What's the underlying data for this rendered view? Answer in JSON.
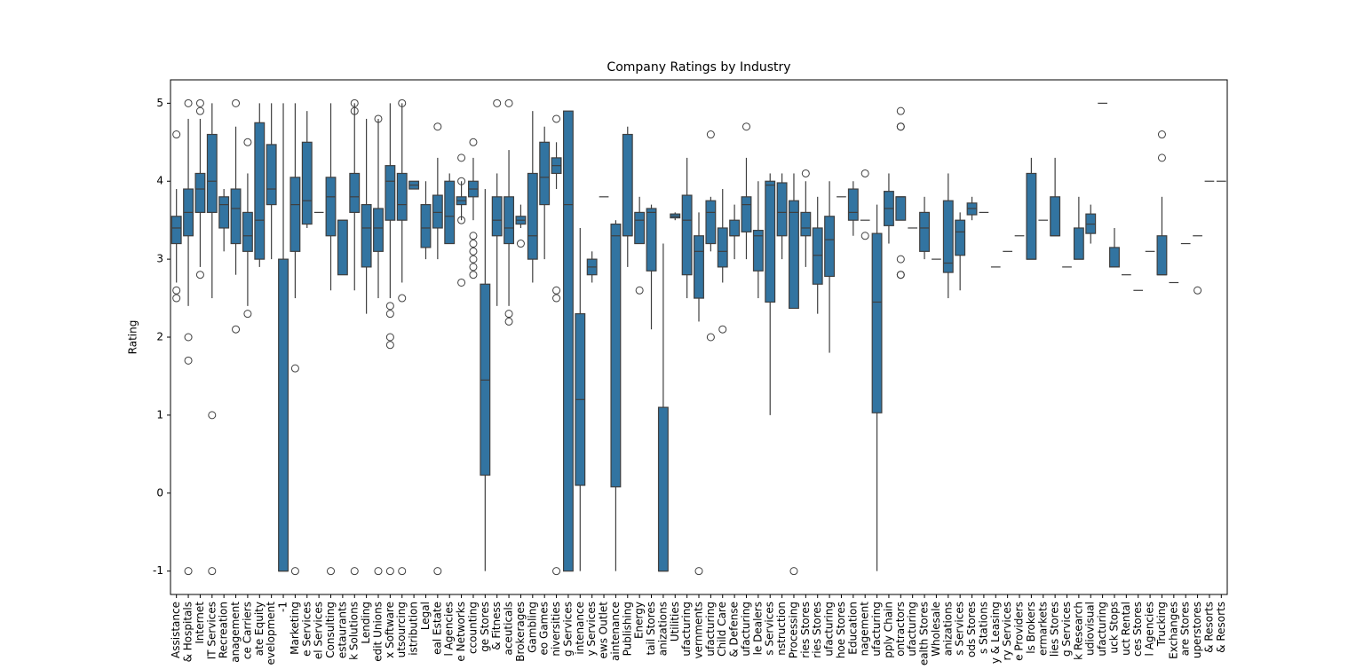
{
  "chart_data": {
    "type": "box",
    "title": "Company Ratings by Industry",
    "y_label": "Rating",
    "color": "#3274a1",
    "line_color": "#3f3f3f",
    "ylim": [
      -1.3,
      5.3
    ],
    "yticks": [
      -1,
      0,
      1,
      2,
      3,
      4,
      5
    ],
    "categories": [
      "Assistance",
      "& Hospitals",
      "Internet",
      "IT Services",
      "Recreation",
      "anagement",
      "ce Carriers",
      "ate Equity",
      "evelopment",
      "-1",
      "Marketing",
      "e Services",
      "el Services",
      "Consulting",
      "estaurants",
      "k Solutions",
      "Lending",
      "edit Unions",
      "x Software",
      "utsourcing",
      "istribution",
      "Legal",
      "eal Estate",
      "l Agencies",
      "e Networks",
      "ccounting",
      "ge Stores",
      "& Fitness",
      "aceuticals",
      "Brokerages",
      "Gambling",
      "eo Games",
      "niversities",
      "g Services",
      "intenance",
      "y Services",
      "ews Outlet",
      "aintenance",
      "Publishing",
      "Energy",
      "tail Stores",
      "anizations",
      "Utilities",
      "ufacturing",
      "vernments",
      "ufacturing",
      "Child Care",
      "& Defense",
      "ufacturing",
      "le Dealers",
      "s Services",
      "nstruction",
      "Processing",
      "ries Stores",
      "ries Stores",
      "ufacturing",
      "hoe Stores",
      "Education",
      "nagement",
      "ufacturing",
      "pply Chain",
      "ontractors",
      "ufacturing",
      "ealth Stores",
      "Wholesale",
      "anizations",
      "s Services",
      "ods Stores",
      "s Stations",
      "y & Leasing",
      "ry Services",
      "e Providers",
      "ls Brokers",
      "ermarkets",
      "lies Stores",
      "g Services",
      "k Research",
      "udiovisual",
      "ufacturing",
      "uck Stops",
      "uct Rental",
      "ces Stores",
      "l Agencies",
      "Trucking",
      "Exchanges",
      "are Stores",
      "uperstores",
      "& Resorts",
      "& Resorts"
    ],
    "boxes": [
      {
        "min": 2.7,
        "q1": 3.2,
        "median": 3.4,
        "q3": 3.55,
        "max": 3.9,
        "outliers": [
          4.6,
          2.6,
          2.5
        ]
      },
      {
        "min": 2.4,
        "q1": 3.3,
        "median": 3.6,
        "q3": 3.9,
        "max": 4.8,
        "outliers": [
          5.0,
          2.0,
          1.7,
          -1
        ]
      },
      {
        "min": 2.9,
        "q1": 3.6,
        "median": 3.9,
        "q3": 4.1,
        "max": 4.8,
        "outliers": [
          5.0,
          4.9,
          2.8
        ]
      },
      {
        "min": 2.5,
        "q1": 3.6,
        "median": 4.0,
        "q3": 4.6,
        "max": 5.0,
        "outliers": [
          1.0,
          -1
        ]
      },
      {
        "min": 3.1,
        "q1": 3.4,
        "median": 3.7,
        "q3": 3.8,
        "max": 3.9,
        "outliers": []
      },
      {
        "min": 2.8,
        "q1": 3.2,
        "median": 3.65,
        "q3": 3.9,
        "max": 4.7,
        "outliers": [
          5.0,
          2.1
        ]
      },
      {
        "min": 2.4,
        "q1": 3.1,
        "median": 3.3,
        "q3": 3.6,
        "max": 4.1,
        "outliers": [
          4.5,
          2.3
        ]
      },
      {
        "min": 2.9,
        "q1": 3.0,
        "median": 3.5,
        "q3": 4.75,
        "max": 5.0,
        "outliers": []
      },
      {
        "min": 3.0,
        "q1": 3.7,
        "median": 3.9,
        "q3": 4.47,
        "max": 5.0,
        "outliers": []
      },
      {
        "min": -1,
        "q1": -1,
        "median": -1,
        "q3": 3.0,
        "max": 5.0,
        "outliers": []
      },
      {
        "min": 2.5,
        "q1": 3.1,
        "median": 3.7,
        "q3": 4.05,
        "max": 5.0,
        "outliers": [
          1.6,
          -1
        ]
      },
      {
        "min": 3.4,
        "q1": 3.45,
        "median": 3.75,
        "q3": 4.5,
        "max": 4.9,
        "outliers": []
      },
      {
        "min": 3.6,
        "q1": 3.6,
        "median": 3.6,
        "q3": 3.6,
        "max": 3.6,
        "outliers": []
      },
      {
        "min": 2.6,
        "q1": 3.3,
        "median": 3.8,
        "q3": 4.05,
        "max": 5.0,
        "outliers": [
          -1
        ]
      },
      {
        "min": 2.8,
        "q1": 2.8,
        "median": 3.5,
        "q3": 3.5,
        "max": 3.5,
        "outliers": []
      },
      {
        "min": 2.6,
        "q1": 3.6,
        "median": 3.8,
        "q3": 4.1,
        "max": 5.0,
        "outliers": [
          5.0,
          4.9,
          -1
        ]
      },
      {
        "min": 2.3,
        "q1": 2.9,
        "median": 3.4,
        "q3": 3.7,
        "max": 4.8,
        "outliers": []
      },
      {
        "min": 2.5,
        "q1": 3.1,
        "median": 3.4,
        "q3": 3.65,
        "max": 4.8,
        "outliers": [
          4.8,
          -1
        ]
      },
      {
        "min": 2.5,
        "q1": 3.5,
        "median": 4.0,
        "q3": 4.2,
        "max": 5.0,
        "outliers": [
          2.4,
          2.3,
          2.0,
          1.9,
          -1
        ]
      },
      {
        "min": 2.7,
        "q1": 3.5,
        "median": 3.7,
        "q3": 4.1,
        "max": 5.0,
        "outliers": [
          5.0,
          2.5,
          -1
        ]
      },
      {
        "min": 3.9,
        "q1": 3.9,
        "median": 3.95,
        "q3": 4.0,
        "max": 4.0,
        "outliers": []
      },
      {
        "min": 3.0,
        "q1": 3.15,
        "median": 3.4,
        "q3": 3.7,
        "max": 4.0,
        "outliers": []
      },
      {
        "min": 3.0,
        "q1": 3.4,
        "median": 3.6,
        "q3": 3.82,
        "max": 4.3,
        "outliers": [
          4.7,
          -1
        ]
      },
      {
        "min": 3.2,
        "q1": 3.2,
        "median": 3.55,
        "q3": 4.0,
        "max": 4.1,
        "outliers": []
      },
      {
        "min": 3.5,
        "q1": 3.7,
        "median": 3.75,
        "q3": 3.8,
        "max": 4.0,
        "outliers": [
          4.3,
          4.0,
          3.5,
          2.7
        ]
      },
      {
        "min": 3.5,
        "q1": 3.8,
        "median": 3.9,
        "q3": 4.0,
        "max": 4.3,
        "outliers": [
          4.5,
          3.3,
          3.2,
          3.1,
          3.0,
          2.9,
          2.8
        ]
      },
      {
        "min": -1,
        "q1": 0.23,
        "median": 1.45,
        "q3": 2.68,
        "max": 3.9,
        "outliers": []
      },
      {
        "min": 2.4,
        "q1": 3.3,
        "median": 3.5,
        "q3": 3.8,
        "max": 4.1,
        "outliers": [
          5.0
        ]
      },
      {
        "min": 2.4,
        "q1": 3.2,
        "median": 3.4,
        "q3": 3.8,
        "max": 4.4,
        "outliers": [
          5.0,
          2.3,
          2.2
        ]
      },
      {
        "min": 3.4,
        "q1": 3.45,
        "median": 3.5,
        "q3": 3.55,
        "max": 3.7,
        "outliers": [
          3.2
        ]
      },
      {
        "min": 2.7,
        "q1": 3.0,
        "median": 3.3,
        "q3": 4.1,
        "max": 4.9,
        "outliers": []
      },
      {
        "min": 3.0,
        "q1": 3.7,
        "median": 4.05,
        "q3": 4.5,
        "max": 4.7,
        "outliers": []
      },
      {
        "min": 3.9,
        "q1": 4.1,
        "median": 4.2,
        "q3": 4.3,
        "max": 4.5,
        "outliers": [
          4.8,
          2.6,
          2.5,
          -1
        ]
      },
      {
        "min": -1,
        "q1": -1,
        "median": 3.7,
        "q3": 4.9,
        "max": 4.9,
        "outliers": []
      },
      {
        "min": -1,
        "q1": 0.1,
        "median": 1.2,
        "q3": 2.3,
        "max": 3.4,
        "outliers": []
      },
      {
        "min": 2.7,
        "q1": 2.8,
        "median": 2.9,
        "q3": 3.0,
        "max": 3.1,
        "outliers": []
      },
      {
        "min": 3.8,
        "q1": 3.8,
        "median": 3.8,
        "q3": 3.8,
        "max": 3.8,
        "outliers": []
      },
      {
        "min": -1,
        "q1": 0.08,
        "median": 3.3,
        "q3": 3.45,
        "max": 3.5,
        "outliers": []
      },
      {
        "min": 2.9,
        "q1": 3.3,
        "median": 3.3,
        "q3": 4.6,
        "max": 4.7,
        "outliers": []
      },
      {
        "min": 3.2,
        "q1": 3.2,
        "median": 3.5,
        "q3": 3.6,
        "max": 3.8,
        "outliers": [
          2.6
        ]
      },
      {
        "min": 2.1,
        "q1": 2.85,
        "median": 3.6,
        "q3": 3.65,
        "max": 3.7,
        "outliers": []
      },
      {
        "min": -1,
        "q1": -1,
        "median": -1,
        "q3": 1.1,
        "max": 3.2,
        "outliers": []
      },
      {
        "min": 3.5,
        "q1": 3.53,
        "median": 3.55,
        "q3": 3.58,
        "max": 3.6,
        "outliers": []
      },
      {
        "min": 2.5,
        "q1": 2.8,
        "median": 3.5,
        "q3": 3.82,
        "max": 4.3,
        "outliers": []
      },
      {
        "min": 2.2,
        "q1": 2.5,
        "median": 3.1,
        "q3": 3.3,
        "max": 3.6,
        "outliers": [
          -1
        ]
      },
      {
        "min": 3.1,
        "q1": 3.2,
        "median": 3.6,
        "q3": 3.75,
        "max": 3.8,
        "outliers": [
          4.6,
          2.0
        ]
      },
      {
        "min": 2.7,
        "q1": 2.9,
        "median": 3.1,
        "q3": 3.4,
        "max": 3.9,
        "outliers": [
          2.1
        ]
      },
      {
        "min": 3.0,
        "q1": 3.3,
        "median": 3.3,
        "q3": 3.5,
        "max": 3.7,
        "outliers": []
      },
      {
        "min": 3.0,
        "q1": 3.35,
        "median": 3.7,
        "q3": 3.8,
        "max": 4.3,
        "outliers": [
          4.7
        ]
      },
      {
        "min": 2.5,
        "q1": 2.85,
        "median": 3.3,
        "q3": 3.37,
        "max": 4.0,
        "outliers": []
      },
      {
        "min": 1.0,
        "q1": 2.45,
        "median": 3.95,
        "q3": 4.0,
        "max": 4.1,
        "outliers": []
      },
      {
        "min": 3.0,
        "q1": 3.3,
        "median": 3.6,
        "q3": 3.98,
        "max": 4.1,
        "outliers": []
      },
      {
        "min": 2.37,
        "q1": 2.37,
        "median": 3.6,
        "q3": 3.75,
        "max": 4.1,
        "outliers": [
          -1
        ]
      },
      {
        "min": 2.9,
        "q1": 3.3,
        "median": 3.4,
        "q3": 3.6,
        "max": 4.0,
        "outliers": [
          4.1
        ]
      },
      {
        "min": 2.3,
        "q1": 2.68,
        "median": 3.05,
        "q3": 3.4,
        "max": 3.8,
        "outliers": []
      },
      {
        "min": 1.8,
        "q1": 2.78,
        "median": 3.25,
        "q3": 3.55,
        "max": 4.0,
        "outliers": []
      },
      {
        "min": 3.8,
        "q1": 3.8,
        "median": 3.8,
        "q3": 3.8,
        "max": 3.8,
        "outliers": []
      },
      {
        "min": 3.3,
        "q1": 3.5,
        "median": 3.6,
        "q3": 3.9,
        "max": 4.0,
        "outliers": []
      },
      {
        "min": 3.5,
        "q1": 3.5,
        "median": 3.5,
        "q3": 3.5,
        "max": 3.5,
        "outliers": [
          4.1,
          3.3
        ]
      },
      {
        "min": -1,
        "q1": 1.03,
        "median": 2.45,
        "q3": 3.33,
        "max": 3.7,
        "outliers": []
      },
      {
        "min": 3.2,
        "q1": 3.43,
        "median": 3.65,
        "q3": 3.87,
        "max": 4.1,
        "outliers": []
      },
      {
        "min": 3.5,
        "q1": 3.5,
        "median": 3.8,
        "q3": 3.8,
        "max": 3.8,
        "outliers": [
          4.9,
          4.7,
          4.7,
          3.0,
          2.8,
          2.8
        ]
      },
      {
        "min": 3.4,
        "q1": 3.4,
        "median": 3.4,
        "q3": 3.4,
        "max": 3.4,
        "outliers": []
      },
      {
        "min": 3.0,
        "q1": 3.1,
        "median": 3.4,
        "q3": 3.6,
        "max": 3.8,
        "outliers": []
      },
      {
        "min": 3.0,
        "q1": 3.0,
        "median": 3.0,
        "q3": 3.0,
        "max": 3.0,
        "outliers": []
      },
      {
        "min": 2.5,
        "q1": 2.83,
        "median": 2.95,
        "q3": 3.75,
        "max": 4.1,
        "outliers": []
      },
      {
        "min": 2.6,
        "q1": 3.05,
        "median": 3.35,
        "q3": 3.5,
        "max": 3.6,
        "outliers": []
      },
      {
        "min": 3.5,
        "q1": 3.57,
        "median": 3.65,
        "q3": 3.72,
        "max": 3.8,
        "outliers": []
      },
      {
        "min": 3.6,
        "q1": 3.6,
        "median": 3.6,
        "q3": 3.6,
        "max": 3.6,
        "outliers": []
      },
      {
        "min": 2.9,
        "q1": 2.9,
        "median": 2.9,
        "q3": 2.9,
        "max": 2.9,
        "outliers": []
      },
      {
        "min": 3.1,
        "q1": 3.1,
        "median": 3.1,
        "q3": 3.1,
        "max": 3.1,
        "outliers": []
      },
      {
        "min": 3.3,
        "q1": 3.3,
        "median": 3.3,
        "q3": 3.3,
        "max": 3.3,
        "outliers": []
      },
      {
        "min": 3.0,
        "q1": 3.0,
        "median": 3.0,
        "q3": 4.1,
        "max": 4.3,
        "outliers": []
      },
      {
        "min": 3.5,
        "q1": 3.5,
        "median": 3.5,
        "q3": 3.5,
        "max": 3.5,
        "outliers": []
      },
      {
        "min": 3.3,
        "q1": 3.3,
        "median": 3.3,
        "q3": 3.8,
        "max": 4.3,
        "outliers": []
      },
      {
        "min": 2.9,
        "q1": 2.9,
        "median": 2.9,
        "q3": 2.9,
        "max": 2.9,
        "outliers": []
      },
      {
        "min": 3.0,
        "q1": 3.0,
        "median": 3.0,
        "q3": 3.4,
        "max": 3.8,
        "outliers": []
      },
      {
        "min": 3.2,
        "q1": 3.33,
        "median": 3.45,
        "q3": 3.58,
        "max": 3.7,
        "outliers": []
      },
      {
        "min": 5.0,
        "q1": 5.0,
        "median": 5.0,
        "q3": 5.0,
        "max": 5.0,
        "outliers": []
      },
      {
        "min": 2.9,
        "q1": 2.9,
        "median": 2.9,
        "q3": 3.15,
        "max": 3.4,
        "outliers": []
      },
      {
        "min": 2.8,
        "q1": 2.8,
        "median": 2.8,
        "q3": 2.8,
        "max": 2.8,
        "outliers": []
      },
      {
        "min": 2.6,
        "q1": 2.6,
        "median": 2.6,
        "q3": 2.6,
        "max": 2.6,
        "outliers": []
      },
      {
        "min": 3.1,
        "q1": 3.1,
        "median": 3.1,
        "q3": 3.1,
        "max": 3.1,
        "outliers": []
      },
      {
        "min": 2.8,
        "q1": 2.8,
        "median": 2.8,
        "q3": 3.3,
        "max": 3.8,
        "outliers": [
          4.6,
          4.3
        ]
      },
      {
        "min": 2.7,
        "q1": 2.7,
        "median": 2.7,
        "q3": 2.7,
        "max": 2.7,
        "outliers": []
      },
      {
        "min": 3.2,
        "q1": 3.2,
        "median": 3.2,
        "q3": 3.2,
        "max": 3.2,
        "outliers": []
      },
      {
        "min": 3.3,
        "q1": 3.3,
        "median": 3.3,
        "q3": 3.3,
        "max": 3.3,
        "outliers": [
          2.6
        ]
      },
      {
        "min": 4.0,
        "q1": 4.0,
        "median": 4.0,
        "q3": 4.0,
        "max": 4.0,
        "outliers": []
      },
      {
        "min": 4.0,
        "q1": 4.0,
        "median": 4.0,
        "q3": 4.0,
        "max": 4.0,
        "outliers": []
      }
    ]
  }
}
